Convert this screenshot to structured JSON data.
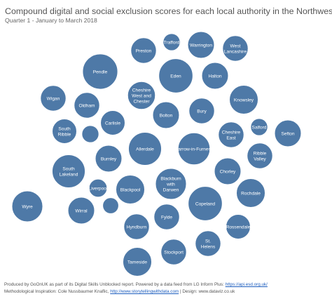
{
  "chart_data": {
    "type": "packed-bubble",
    "title": "Compound digital and social exclusion scores for each local authority in the Northwest",
    "subtitle": "Quarter 1 - January to March 2018",
    "color": "#4e79a7",
    "bubbles": [
      {
        "label": "Pendle",
        "value": 33
      },
      {
        "label": "Eden",
        "value": 32
      },
      {
        "label": "Copeland",
        "value": 32
      },
      {
        "label": "Allerdale",
        "value": 31
      },
      {
        "label": "South Lakeland",
        "value": 31
      },
      {
        "label": "Barrow-in-Furness",
        "value": 30
      },
      {
        "label": "Blackburn with Darwen",
        "value": 29
      },
      {
        "label": "Wyre",
        "value": 29
      },
      {
        "label": "Knowsley",
        "value": 27
      },
      {
        "label": "Tameside",
        "value": 27
      },
      {
        "label": "Blackpool",
        "value": 27
      },
      {
        "label": "Rochdale",
        "value": 27
      },
      {
        "label": "Cheshire West and Chester",
        "value": 26
      },
      {
        "label": "Sefton",
        "value": 25
      },
      {
        "label": "Burnley",
        "value": 25
      },
      {
        "label": "Wirral",
        "value": 25
      },
      {
        "label": "Halton",
        "value": 25
      },
      {
        "label": "Warrington",
        "value": 25
      },
      {
        "label": "Bolton",
        "value": 25
      },
      {
        "label": "Chorley",
        "value": 25
      },
      {
        "label": "Bury",
        "value": 24
      },
      {
        "label": "Wigan",
        "value": 24
      },
      {
        "label": "West Lancashire",
        "value": 24
      },
      {
        "label": "Cheshire East",
        "value": 24
      },
      {
        "label": "Preston",
        "value": 24
      },
      {
        "label": "Stockport",
        "value": 24
      },
      {
        "label": "Oldham",
        "value": 24
      },
      {
        "label": "Hyndburn",
        "value": 24
      },
      {
        "label": "Fylde",
        "value": 24
      },
      {
        "label": "Ribble Valley",
        "value": 24
      },
      {
        "label": "St. Helens",
        "value": 24
      },
      {
        "label": "South Ribble",
        "value": 23
      },
      {
        "label": "Rossendale",
        "value": 23
      },
      {
        "label": "Carlisle",
        "value": 23
      },
      {
        "label": "Liverpool",
        "value": 17
      },
      {
        "label": "Salford",
        "value": 16
      },
      {
        "label": "Trafford",
        "value": 16
      },
      {
        "label": "",
        "value": 16
      },
      {
        "label": "",
        "value": 15
      }
    ]
  },
  "footer": {
    "line1_prefix": "Produced by GoOnUK as part of its Digital Skills Unblocked report. Powered by a data feed from LG Inform Plus: ",
    "line1_link": "https://api.esd.org.uk/",
    "line2_prefix": "Methodological Inspiration: Cole Nussbaumer Knaflic, ",
    "line2_link": "http://www.storytellingwithdata.com",
    "line2_suffix": " | Design: www.dataviz.co.uk"
  }
}
